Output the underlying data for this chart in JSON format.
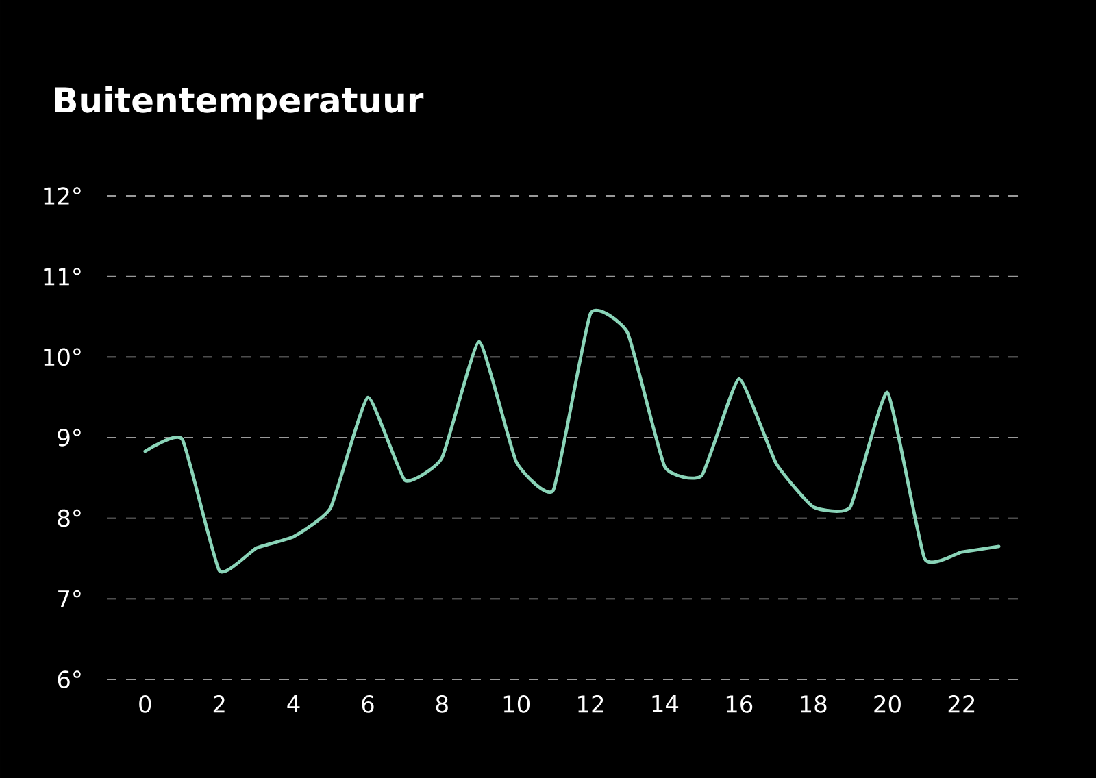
{
  "chart_data": {
    "type": "line",
    "title": "Buitentemperatuur",
    "x": [
      0,
      1,
      2,
      3,
      4,
      5,
      6,
      7,
      8,
      9,
      10,
      11,
      12,
      13,
      14,
      15,
      16,
      17,
      18,
      19,
      20,
      21,
      22,
      23
    ],
    "series": [
      {
        "color": "#8ad4b8",
        "values": [
          8.83,
          8.98,
          7.35,
          7.63,
          7.77,
          8.13,
          9.5,
          8.47,
          8.75,
          10.19,
          8.7,
          8.35,
          10.54,
          10.3,
          8.64,
          8.53,
          9.73,
          8.68,
          8.14,
          8.14,
          9.56,
          7.5,
          7.58,
          7.65
        ]
      }
    ],
    "xlim": [
      -1.03,
      23.7
    ],
    "ylim": [
      6,
      12
    ],
    "xticks": [
      0,
      2,
      4,
      6,
      8,
      10,
      12,
      14,
      16,
      18,
      20,
      22
    ],
    "yticks": [
      {
        "value": 6,
        "label": "6°"
      },
      {
        "value": 7,
        "label": "7°"
      },
      {
        "value": 8,
        "label": "8°"
      },
      {
        "value": 9,
        "label": "9°"
      },
      {
        "value": 10,
        "label": "10°"
      },
      {
        "value": 11,
        "label": "11°"
      },
      {
        "value": 12,
        "label": "12°"
      }
    ],
    "grid": "y",
    "marker": "none",
    "line_style": "solid"
  }
}
